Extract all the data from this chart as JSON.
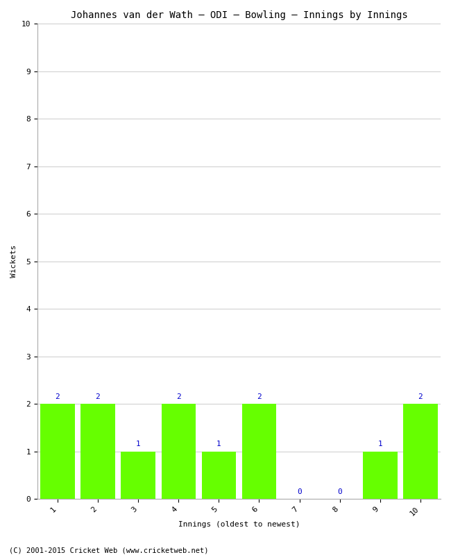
{
  "title": "Johannes van der Wath – ODI – Bowling – Innings by Innings",
  "xlabel": "Innings (oldest to newest)",
  "ylabel": "Wickets",
  "innings": [
    1,
    2,
    3,
    4,
    5,
    6,
    7,
    8,
    9,
    10
  ],
  "wickets": [
    2,
    2,
    1,
    2,
    1,
    2,
    0,
    0,
    1,
    2
  ],
  "bar_color": "#66ff00",
  "label_color": "#0000cc",
  "ylim": [
    0,
    10
  ],
  "yticks": [
    0,
    1,
    2,
    3,
    4,
    5,
    6,
    7,
    8,
    9,
    10
  ],
  "background_color": "#ffffff",
  "grid_color": "#cccccc",
  "title_fontsize": 10,
  "axis_label_fontsize": 8,
  "tick_fontsize": 8,
  "bar_label_fontsize": 8,
  "footer": "(C) 2001-2015 Cricket Web (www.cricketweb.net)",
  "footer_fontsize": 7.5
}
